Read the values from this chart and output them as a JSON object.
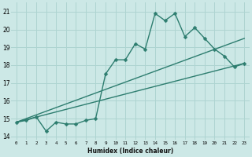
{
  "xlabel": "Humidex (Indice chaleur)",
  "background_color": "#cce8e6",
  "grid_color": "#aed4d1",
  "line_color": "#2d7d6f",
  "xlim": [
    -0.5,
    23.5
  ],
  "ylim": [
    13.8,
    21.5
  ],
  "xticks": [
    0,
    1,
    2,
    3,
    4,
    5,
    6,
    7,
    8,
    9,
    10,
    11,
    12,
    13,
    14,
    15,
    16,
    17,
    18,
    19,
    20,
    21,
    22,
    23
  ],
  "yticks": [
    14,
    15,
    16,
    17,
    18,
    19,
    20,
    21
  ],
  "jagged_x": [
    0,
    1,
    2,
    3,
    4,
    5,
    6,
    7,
    8,
    9,
    10,
    11,
    12,
    13,
    14,
    15,
    16,
    17,
    18,
    19,
    20,
    21,
    22,
    23
  ],
  "jagged_y": [
    14.8,
    14.9,
    15.1,
    14.3,
    14.8,
    14.7,
    14.7,
    14.9,
    15.0,
    17.5,
    18.3,
    18.3,
    19.2,
    18.9,
    20.9,
    20.5,
    20.9,
    19.6,
    20.1,
    19.5,
    18.9,
    18.5,
    17.9,
    18.1
  ],
  "line2_x": [
    0,
    23
  ],
  "line2_y": [
    14.8,
    19.5
  ],
  "line3_x": [
    0,
    23
  ],
  "line3_y": [
    14.8,
    18.1
  ],
  "marker_size": 2.5,
  "line_width": 1.0
}
